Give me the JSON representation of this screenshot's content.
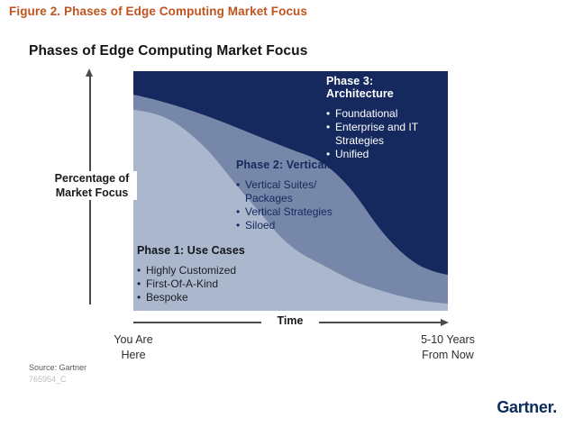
{
  "colors": {
    "caption_orange": "#c0531e",
    "phase1_light": "#aab7cd",
    "phase2_medium": "#7687a9",
    "phase3_dark": "#15295e",
    "axis_gray": "#4a4a4a",
    "logo_navy": "#0b2b5b"
  },
  "caption": "Figure 2. Phases of Edge Computing Market Focus",
  "chart": {
    "title": "Phases of Edge Computing Market Focus",
    "y_axis": {
      "line1": "Percentage of",
      "line2": "Market Focus"
    },
    "x_axis": {
      "label": "Time"
    },
    "x_start": {
      "line1": "You Are",
      "line2": "Here"
    },
    "x_end": {
      "line1": "5-10 Years",
      "line2": "From Now"
    },
    "phases": [
      {
        "title": "Phase 1: Use Cases",
        "bullets": [
          "Highly Customized",
          "First-Of-A-Kind",
          "Bespoke"
        ]
      },
      {
        "title": "Phase 2: Verticals",
        "bullets": [
          "Vertical Suites/ Packages",
          "Vertical Strategies",
          "Siloed"
        ]
      },
      {
        "title": "Phase 3: Architecture",
        "bullets": [
          "Foundational",
          "Enterprise and IT Strategies",
          "Unified"
        ]
      }
    ]
  },
  "chart_data": {
    "type": "area",
    "stacked": true,
    "title": "Phases of Edge Computing Market Focus",
    "xlabel": "Time",
    "ylabel": "Percentage of Market Focus",
    "x_axis_start_annotation": "You Are Here",
    "x_axis_end_annotation": "5-10 Years From Now",
    "x": [
      0,
      0.25,
      0.5,
      0.75,
      1
    ],
    "series": [
      {
        "name": "Phase 1: Use Cases",
        "values": [
          84,
          64,
          29,
          10,
          3
        ],
        "color": "#aab7cd"
      },
      {
        "name": "Phase 2: Verticals",
        "values": [
          6,
          16,
          38,
          30,
          12
        ],
        "color": "#7687a9"
      },
      {
        "name": "Phase 3: Architecture",
        "values": [
          10,
          20,
          33,
          60,
          85
        ],
        "color": "#15295e"
      }
    ],
    "ylim": [
      0,
      100
    ],
    "grid": false,
    "legend_position": "labels-inside-areas",
    "axis_ticks": "none (qualitative axes with directional arrows)"
  },
  "footer": {
    "source": "Source: Gartner",
    "doc_id": "765954_C",
    "logo_text": "Gartner."
  }
}
